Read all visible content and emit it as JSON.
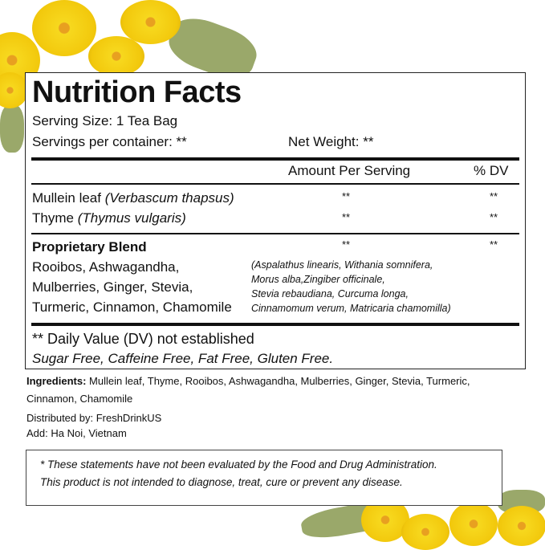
{
  "title": "Nutrition Facts",
  "serving_size": "Serving Size: 1 Tea Bag",
  "servings_per_container": "Servings per container: **",
  "net_weight": "Net Weight: **",
  "header": {
    "amount": "Amount Per Serving",
    "dv": "% DV"
  },
  "rows": [
    {
      "name": "Mullein leaf ",
      "latin": "(Verbascum thapsus)",
      "amount": "**",
      "dv": "**"
    },
    {
      "name": "Thyme ",
      "latin": "(Thymus vulgaris)",
      "amount": "**",
      "dv": "**"
    }
  ],
  "blend": {
    "name": "Proprietary Blend",
    "amount": "**",
    "dv": "**",
    "lines": [
      "Rooibos, Ashwagandha,",
      "Mulberries, Ginger, Stevia,",
      "Turmeric, Cinnamon, Chamomile"
    ],
    "latin": [
      "(Aspalathus linearis, Withania somnifera,",
      "Morus alba,Zingiber officinale,",
      "Stevia rebaudiana, Curcuma longa,",
      "Cinnamomum verum, Matricaria chamomilla)"
    ]
  },
  "dv_note": "** Daily Value (DV) not established",
  "claims": "Sugar Free, Caffeine Free, Fat Free, Gluten Free.",
  "ingredients_label": "Ingredients:",
  "ingredients_line1": " Mullein leaf, Thyme, Rooibos, Ashwagandha, Mulberries, Ginger, Stevia, Turmeric,",
  "ingredients_line2": "Cinnamon, Chamomile",
  "distributed": "Distributed by: FreshDrinkUS",
  "address": "Add: Ha Noi, Vietnam",
  "disclaimer": [
    "* These statements have not been evaluated by the Food and Drug Administration.",
    "This product is not intended to diagnose, treat, cure or prevent any disease."
  ]
}
